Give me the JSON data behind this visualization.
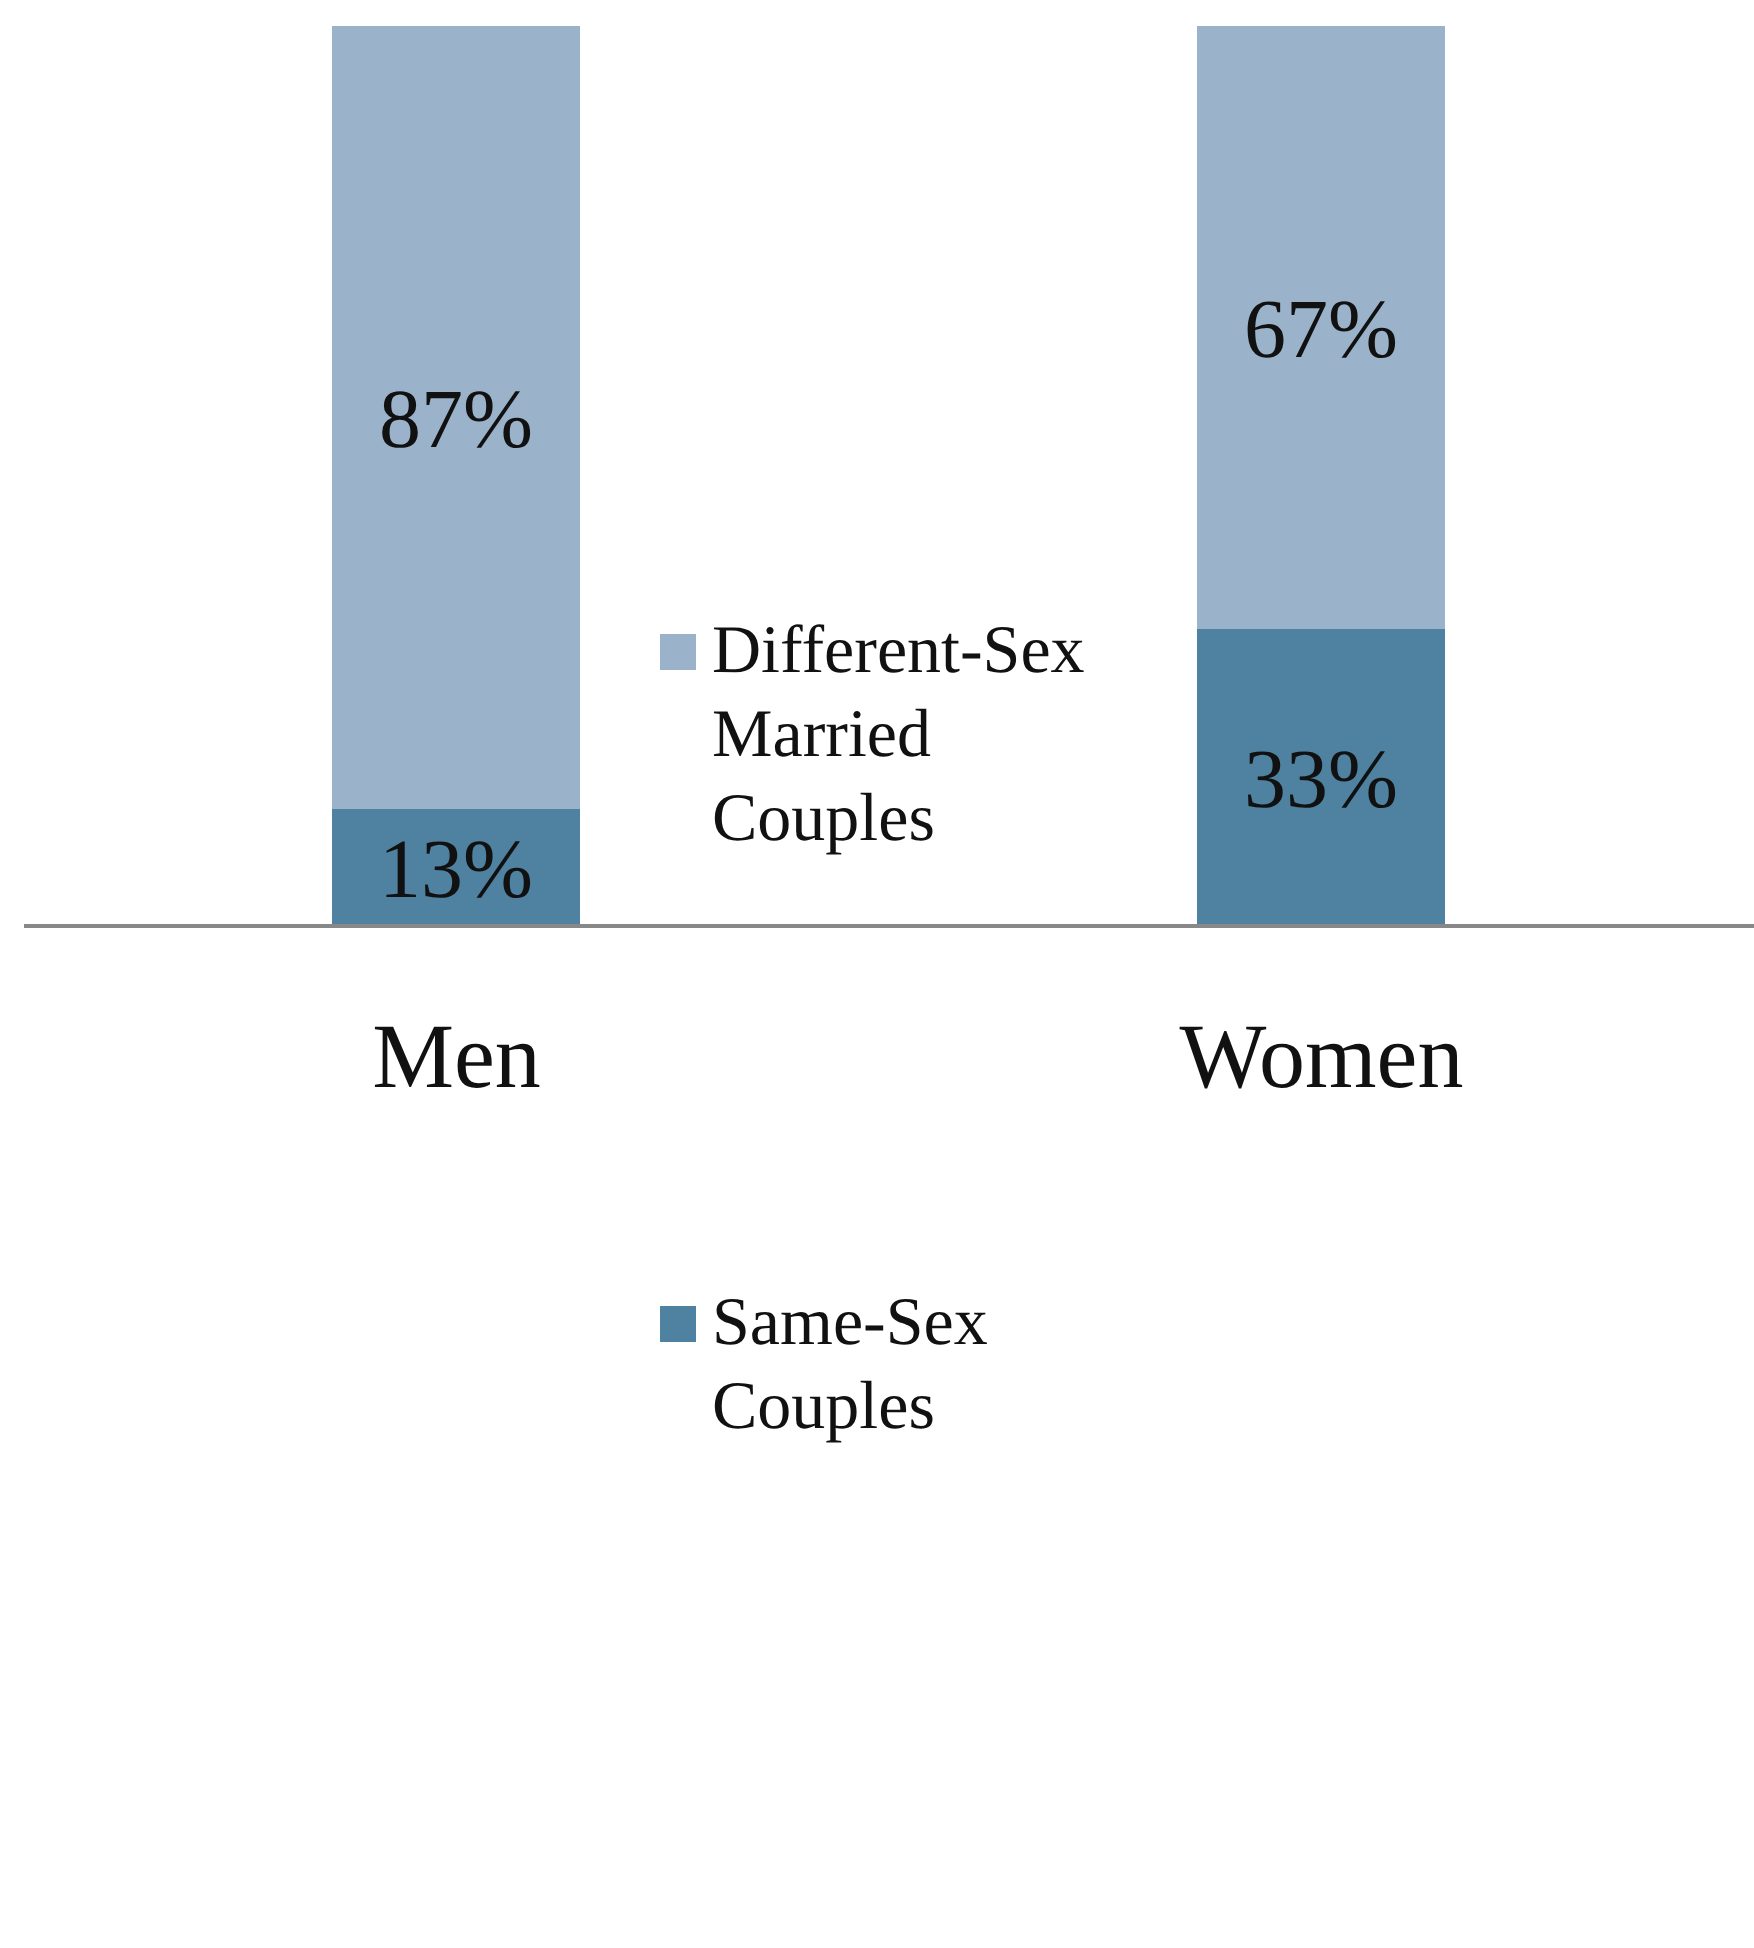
{
  "chart_data": {
    "type": "bar",
    "stacked": true,
    "categories": [
      "Men",
      "Women"
    ],
    "series": [
      {
        "name": "Same-Sex Couples",
        "color": "#4f81a1",
        "values": [
          13,
          33
        ],
        "value_labels": [
          "13%",
          "33%"
        ]
      },
      {
        "name": "Different-Sex Married Couples",
        "color": "#9ab3ca",
        "values": [
          87,
          67
        ],
        "value_labels": [
          "87%",
          "67%"
        ]
      }
    ],
    "legend": "center",
    "grid": false
  }
}
